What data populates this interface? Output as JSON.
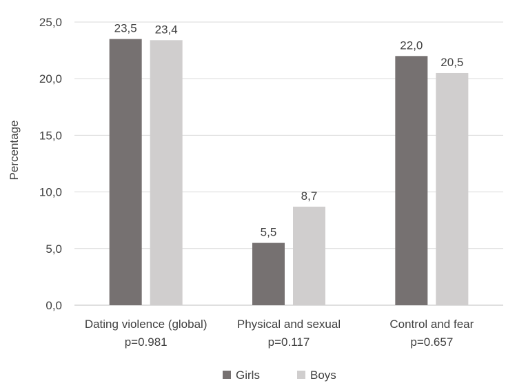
{
  "chart_data": {
    "type": "bar",
    "title": "",
    "xlabel": "",
    "ylabel": "Percentage",
    "ylim": [
      0,
      25
    ],
    "yticks": [
      0,
      5,
      10,
      15,
      20,
      25
    ],
    "ytick_labels": [
      "0,0",
      "5,0",
      "10,0",
      "15,0",
      "20,0",
      "25,0"
    ],
    "grid": true,
    "legend_position": "bottom",
    "categories": [
      {
        "line1": "Dating violence (global)",
        "line2": "p=0.981"
      },
      {
        "line1": "Physical and sexual",
        "line2": "p=0.117"
      },
      {
        "line1": "Control and fear",
        "line2": "p=0.657"
      }
    ],
    "series": [
      {
        "name": "Girls",
        "color": "#767171",
        "values": [
          23.5,
          5.5,
          22.0
        ],
        "labels": [
          "23,5",
          "5,5",
          "22,0"
        ]
      },
      {
        "name": "Boys",
        "color": "#d0cece",
        "values": [
          23.4,
          8.7,
          20.5
        ],
        "labels": [
          "23,4",
          "8,7",
          "20,5"
        ]
      }
    ]
  }
}
